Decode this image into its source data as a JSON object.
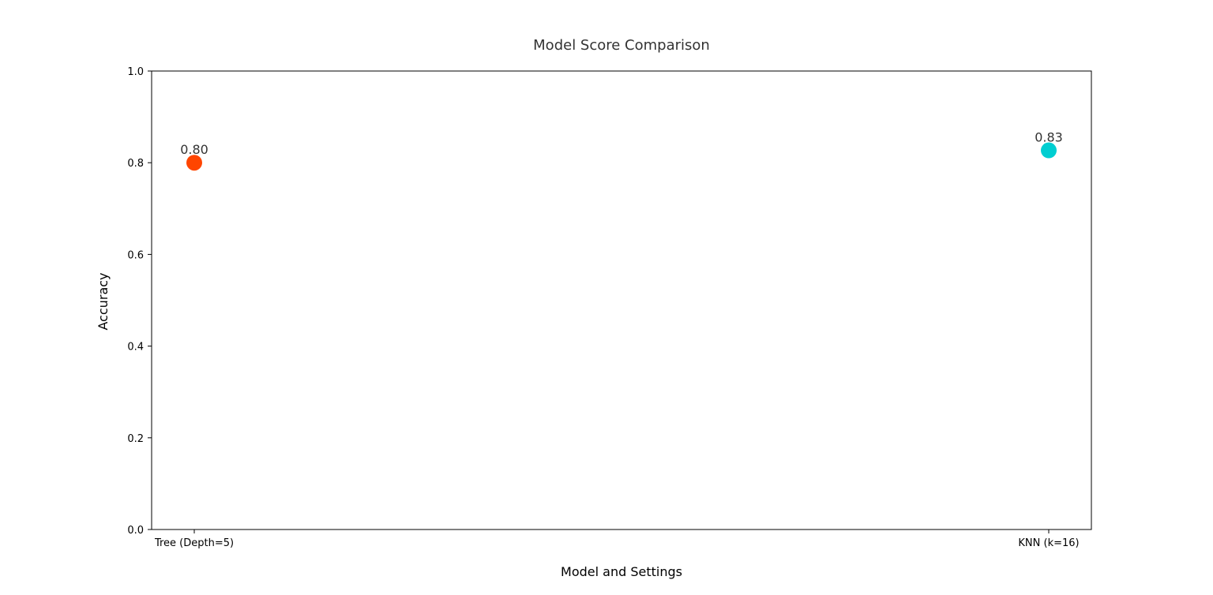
{
  "chart_data": {
    "type": "scatter",
    "title": "Model Score Comparison",
    "xlabel": "Model and Settings",
    "ylabel": "Accuracy",
    "categories": [
      "Tree (Depth=5)",
      "KNN (k=16)"
    ],
    "values": [
      0.8,
      0.827
    ],
    "data_labels": [
      "0.80",
      "0.83"
    ],
    "colors": [
      "#ff4500",
      "#00ced1"
    ],
    "ylim": [
      0,
      1.0
    ],
    "yticks": [
      0.0,
      0.2,
      0.4,
      0.6,
      0.8,
      1.0
    ],
    "ytick_labels": [
      "0.0",
      "0.2",
      "0.4",
      "0.6",
      "0.8",
      "1.0"
    ],
    "grid": false,
    "legend": "none"
  }
}
